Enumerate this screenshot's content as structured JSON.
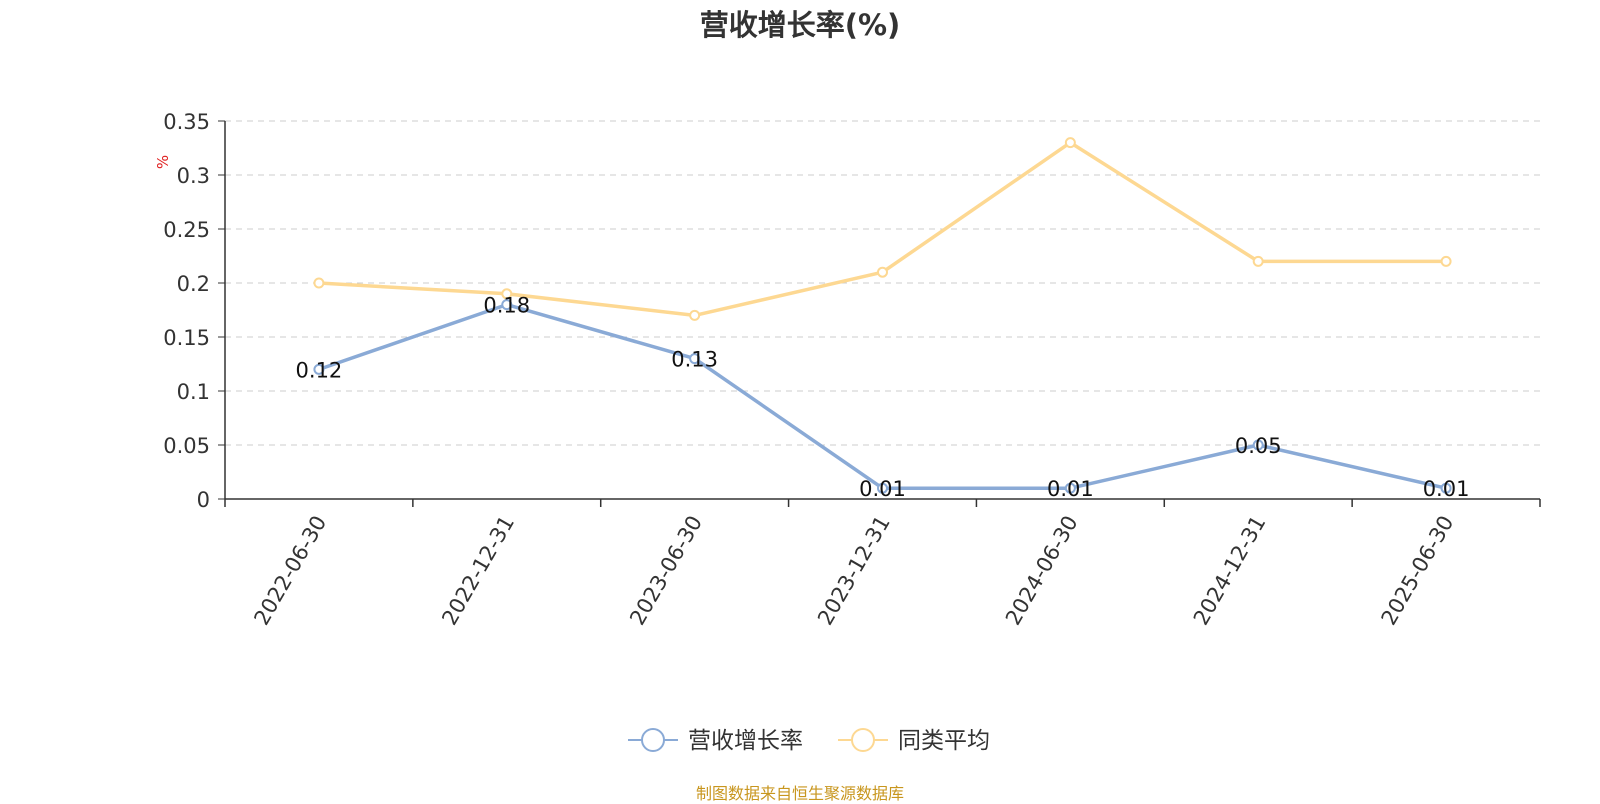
{
  "title": "营收增长率(%)",
  "source_note": "制图数据来自恒生聚源数据库",
  "chart_data": {
    "type": "line",
    "title": "营收增长率(%)",
    "ylabel": "%",
    "xlabel": "",
    "categories": [
      "2022-06-30",
      "2022-12-31",
      "2023-06-30",
      "2023-12-31",
      "2024-06-30",
      "2024-12-31",
      "2025-06-30"
    ],
    "ylim": [
      0,
      0.35
    ],
    "yticks": [
      "0",
      "0.05",
      "0.1",
      "0.15",
      "0.2",
      "0.25",
      "0.3",
      "0.35"
    ],
    "ytick_values": [
      0,
      0.05,
      0.1,
      0.15,
      0.2,
      0.25,
      0.3,
      0.35
    ],
    "grid": true,
    "legend_position": "bottom-center",
    "series": [
      {
        "name": "营收增长率",
        "values": [
          0.12,
          0.18,
          0.13,
          0.01,
          0.01,
          0.05,
          0.01
        ],
        "labels": [
          "0.12",
          "0.18",
          "0.13",
          "0.01",
          "0.01",
          "0.05",
          "0.01"
        ],
        "color": "#8aaad6"
      },
      {
        "name": "同类平均",
        "values": [
          0.2,
          0.19,
          0.17,
          0.21,
          0.33,
          0.22,
          0.22
        ],
        "color": "#fdd892"
      }
    ]
  }
}
